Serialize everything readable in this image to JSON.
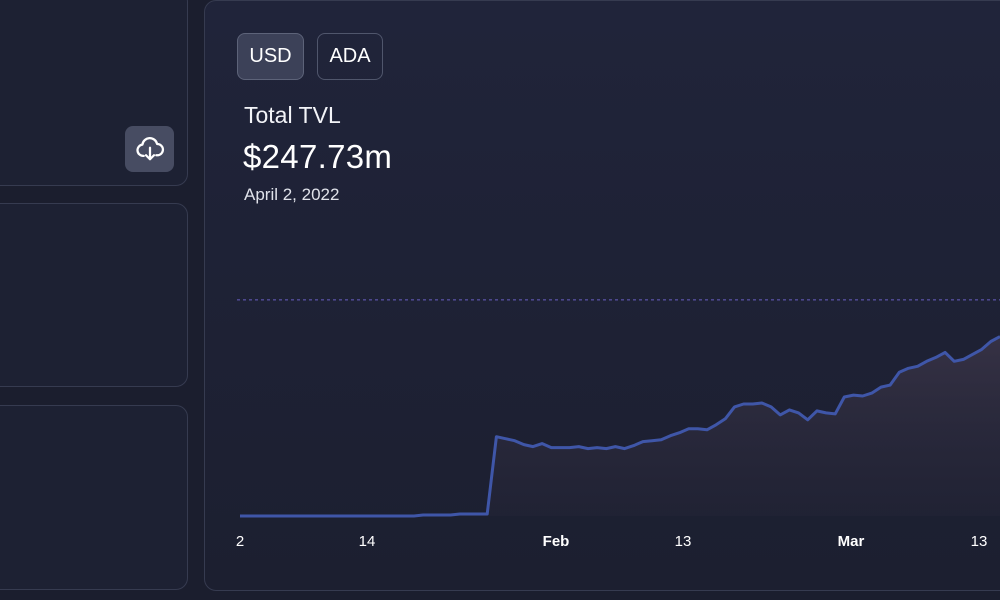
{
  "toolbar": {
    "currency_options": [
      "USD",
      "ADA"
    ],
    "selected": "USD"
  },
  "summary": {
    "title": "Total TVL",
    "value": "$247.73m",
    "date": "April 2, 2022"
  },
  "icons": {
    "download": "cloud-download-icon"
  },
  "colors": {
    "line": "#3f56a8",
    "reference_line": "#6a5fc4",
    "background": "#1b1e2e"
  },
  "chart_data": {
    "type": "area",
    "x_ticks": [
      {
        "label": "2",
        "bold": false
      },
      {
        "label": "14",
        "bold": false
      },
      {
        "label": "Feb",
        "bold": true
      },
      {
        "label": "13",
        "bold": false
      },
      {
        "label": "Mar",
        "bold": true
      },
      {
        "label": "13",
        "bold": false
      }
    ],
    "series": [
      {
        "values": [
          0,
          0,
          0,
          0,
          0,
          0,
          0,
          0,
          0,
          0,
          0,
          0,
          0,
          0,
          0,
          0,
          0,
          0,
          0,
          0,
          1,
          1,
          1,
          1,
          2,
          2,
          2,
          2,
          80,
          78,
          76,
          72,
          70,
          73,
          69,
          69,
          69,
          70,
          68,
          69,
          68,
          70,
          68,
          71,
          75,
          76,
          77,
          81,
          84,
          88,
          88,
          87,
          92,
          98,
          110,
          113,
          113,
          114,
          110,
          102,
          107,
          104,
          97,
          106,
          104,
          103,
          120,
          122,
          121,
          124,
          130,
          132,
          145,
          149,
          151,
          156,
          160,
          165,
          156,
          158,
          163,
          168,
          176,
          181
        ]
      }
    ],
    "reference_value": 218,
    "ylim": [
      0,
      232
    ],
    "grid": false,
    "legend": "none"
  }
}
